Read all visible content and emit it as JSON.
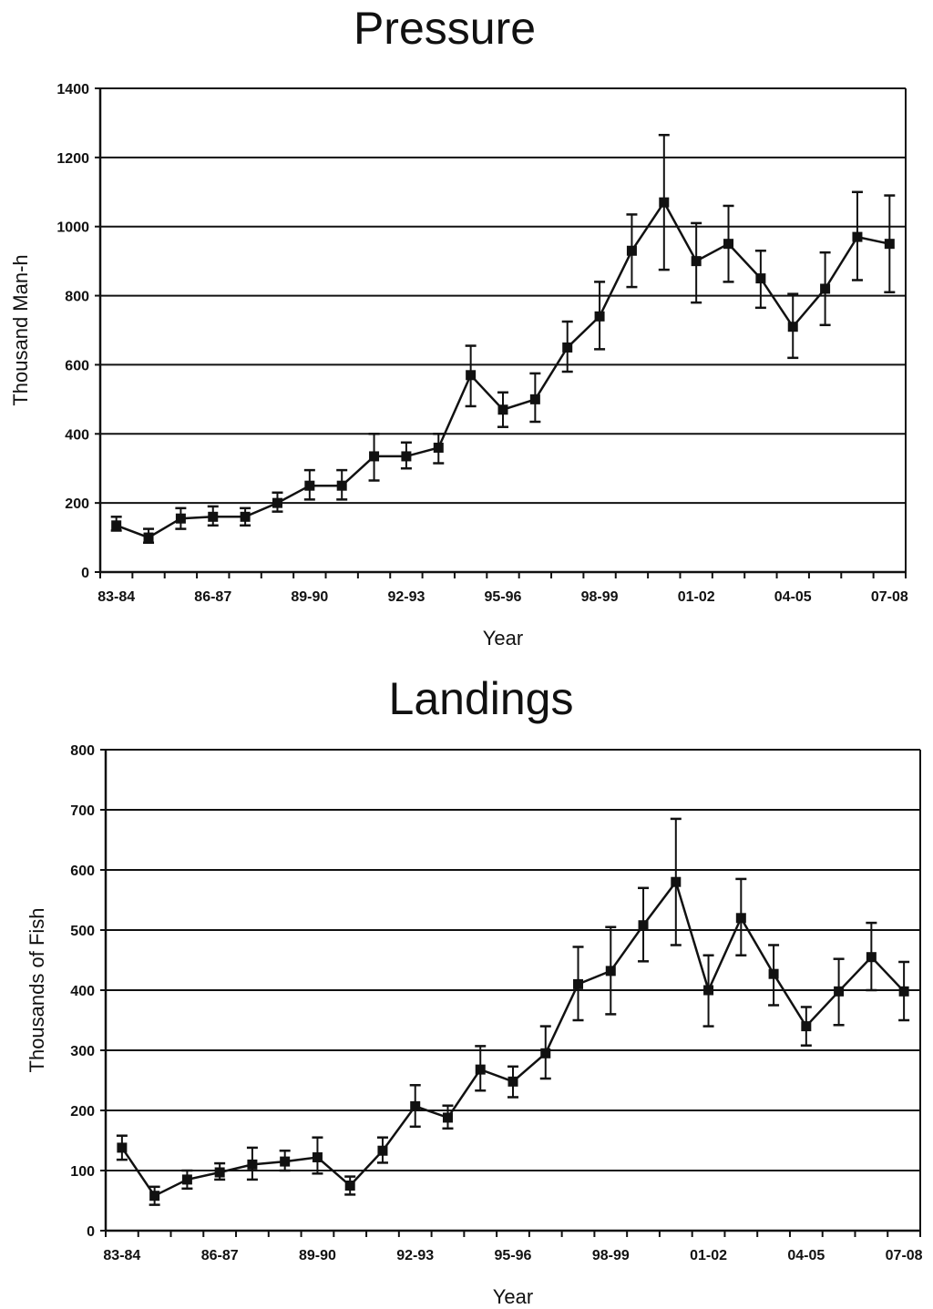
{
  "chart_data": [
    {
      "type": "line",
      "title": "Pressure",
      "xlabel": "Year",
      "ylabel": "Thousand Man-h",
      "ylim": [
        0,
        1400
      ],
      "yticks": [
        0,
        200,
        400,
        600,
        800,
        1000,
        1200,
        1400
      ],
      "categories": [
        "83-84",
        "84-85",
        "85-86",
        "86-87",
        "87-88",
        "88-89",
        "89-90",
        "90-91",
        "91-92",
        "92-93",
        "93-94",
        "94-95",
        "95-96",
        "96-97",
        "97-98",
        "98-99",
        "99-00",
        "00-01",
        "01-02",
        "02-03",
        "03-04",
        "04-05",
        "05-06",
        "06-07",
        "07-08"
      ],
      "tick_labels": [
        "83-84",
        "86-87",
        "89-90",
        "92-93",
        "95-96",
        "98-99",
        "01-02",
        "04-05",
        "07-08"
      ],
      "tick_label_index": [
        0,
        3,
        6,
        9,
        12,
        15,
        18,
        21,
        24
      ],
      "grid": true,
      "error_bars": true,
      "series": [
        {
          "values": [
            135,
            100,
            155,
            160,
            160,
            200,
            250,
            250,
            335,
            335,
            360,
            570,
            470,
            500,
            650,
            740,
            930,
            1070,
            900,
            950,
            850,
            710,
            820,
            970,
            950
          ],
          "upper": [
            160,
            125,
            185,
            190,
            185,
            230,
            295,
            295,
            400,
            375,
            400,
            655,
            520,
            575,
            725,
            840,
            1035,
            1265,
            1010,
            1060,
            930,
            805,
            925,
            1100,
            1090
          ],
          "lower": [
            120,
            85,
            125,
            135,
            135,
            175,
            210,
            210,
            265,
            300,
            315,
            480,
            420,
            435,
            580,
            645,
            825,
            875,
            780,
            840,
            765,
            620,
            715,
            845,
            810
          ]
        }
      ]
    },
    {
      "type": "line",
      "title": "Landings",
      "xlabel": "Year",
      "ylabel": "Thousands of Fish",
      "ylim": [
        0,
        800
      ],
      "yticks": [
        0,
        100,
        200,
        300,
        400,
        500,
        600,
        700,
        800
      ],
      "categories": [
        "83-84",
        "84-85",
        "85-86",
        "86-87",
        "87-88",
        "88-89",
        "89-90",
        "90-91",
        "91-92",
        "92-93",
        "93-94",
        "94-95",
        "95-96",
        "96-97",
        "97-98",
        "98-99",
        "99-00",
        "00-01",
        "01-02",
        "02-03",
        "03-04",
        "04-05",
        "05-06",
        "06-07",
        "07-08"
      ],
      "tick_labels": [
        "83-84",
        "86-87",
        "89-90",
        "92-93",
        "95-96",
        "98-99",
        "01-02",
        "04-05",
        "07-08"
      ],
      "tick_label_index": [
        0,
        3,
        6,
        9,
        12,
        15,
        18,
        21,
        24
      ],
      "grid": true,
      "error_bars": true,
      "series": [
        {
          "values": [
            138,
            58,
            85,
            97,
            110,
            115,
            122,
            75,
            133,
            207,
            188,
            268,
            248,
            295,
            410,
            432,
            508,
            580,
            400,
            520,
            427,
            340,
            398,
            455,
            398
          ],
          "upper": [
            158,
            73,
            100,
            112,
            138,
            133,
            155,
            90,
            155,
            242,
            208,
            307,
            273,
            340,
            472,
            505,
            570,
            685,
            458,
            585,
            475,
            372,
            452,
            512,
            447
          ],
          "lower": [
            118,
            43,
            70,
            85,
            85,
            100,
            95,
            60,
            113,
            173,
            170,
            233,
            222,
            253,
            350,
            360,
            448,
            475,
            340,
            458,
            375,
            308,
            342,
            400,
            350
          ]
        }
      ]
    }
  ]
}
